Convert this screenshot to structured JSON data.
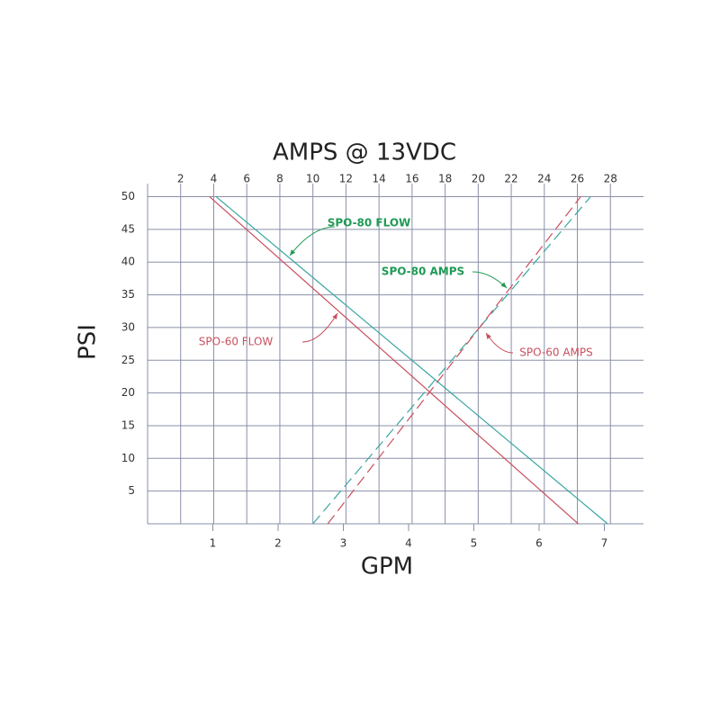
{
  "chart_data": {
    "type": "line",
    "x_label": "GPM",
    "x2_label": "AMPS @ 13VDC",
    "y_label": "PSI",
    "xlim": [
      0,
      7.6
    ],
    "xticks": [
      1,
      2,
      3,
      4,
      5,
      6,
      7
    ],
    "x2lim": [
      0,
      30
    ],
    "x2ticks": [
      2,
      4,
      6,
      8,
      10,
      12,
      14,
      16,
      18,
      20,
      22,
      24,
      26,
      28
    ],
    "ylim": [
      0,
      52
    ],
    "yticks": [
      5,
      10,
      15,
      20,
      25,
      30,
      35,
      40,
      45,
      50
    ],
    "grid": true,
    "series": [
      {
        "name": "SPO-60 FLOW",
        "color": "#c9505e",
        "dashed": false,
        "x": [
          0.95,
          6.6
        ],
        "values": [
          50,
          0
        ]
      },
      {
        "name": "SPO-80 FLOW",
        "color": "#3aa6a2",
        "dashed": false,
        "x": [
          1.05,
          7.05
        ],
        "values": [
          50,
          0
        ]
      },
      {
        "name": "SPO-80 AMPS",
        "color": "#3aa6a2",
        "dashed": true,
        "axis": "x2",
        "x": [
          10,
          26.8
        ],
        "values": [
          0,
          50
        ]
      },
      {
        "name": "SPO-60 AMPS",
        "color": "#c9505e",
        "dashed": true,
        "axis": "x2",
        "x": [
          10.9,
          26.2
        ],
        "values": [
          0,
          50
        ]
      }
    ],
    "annotations": [
      {
        "text": "SPO-80 FLOW",
        "color": "#1f9a55"
      },
      {
        "text": "SPO-80 AMPS",
        "color": "#1f9a55"
      },
      {
        "text": "SPO-60 FLOW",
        "color": "#c9505e"
      },
      {
        "text": "SPO-60 AMPS",
        "color": "#c9505e"
      }
    ]
  }
}
